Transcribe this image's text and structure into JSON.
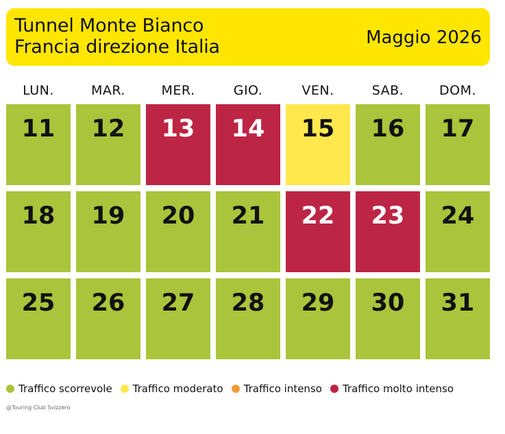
{
  "header": {
    "title_line1": "Tunnel Monte Bianco",
    "title_line2": "Francia direzione Italia",
    "month": "Maggio 2026"
  },
  "colors": {
    "header_bg": "#ffe600",
    "scorrevole": "#aac43b",
    "moderato": "#ffe84d",
    "intenso": "#f29a38",
    "molto_intenso": "#bd2545"
  },
  "weekdays": [
    "LUN.",
    "MAR.",
    "MER.",
    "GIO.",
    "VEN.",
    "SAB.",
    "DOM."
  ],
  "calendar": [
    [
      {
        "day": "11",
        "status": "scorrevole"
      },
      {
        "day": "12",
        "status": "scorrevole"
      },
      {
        "day": "13",
        "status": "molto_intenso"
      },
      {
        "day": "14",
        "status": "molto_intenso"
      },
      {
        "day": "15",
        "status": "moderato"
      },
      {
        "day": "16",
        "status": "scorrevole"
      },
      {
        "day": "17",
        "status": "scorrevole"
      }
    ],
    [
      {
        "day": "18",
        "status": "scorrevole"
      },
      {
        "day": "19",
        "status": "scorrevole"
      },
      {
        "day": "20",
        "status": "scorrevole"
      },
      {
        "day": "21",
        "status": "scorrevole"
      },
      {
        "day": "22",
        "status": "molto_intenso"
      },
      {
        "day": "23",
        "status": "molto_intenso"
      },
      {
        "day": "24",
        "status": "scorrevole"
      }
    ],
    [
      {
        "day": "25",
        "status": "scorrevole"
      },
      {
        "day": "26",
        "status": "scorrevole"
      },
      {
        "day": "27",
        "status": "scorrevole"
      },
      {
        "day": "28",
        "status": "scorrevole"
      },
      {
        "day": "29",
        "status": "scorrevole"
      },
      {
        "day": "30",
        "status": "scorrevole"
      },
      {
        "day": "31",
        "status": "scorrevole"
      }
    ]
  ],
  "legend": [
    {
      "key": "scorrevole",
      "label": "Traffico scorrevole"
    },
    {
      "key": "moderato",
      "label": "Traffico moderato"
    },
    {
      "key": "intenso",
      "label": "Traffico intenso"
    },
    {
      "key": "molto_intenso",
      "label": "Traffico molto intenso"
    }
  ],
  "credit": "@Touring Club Svizzero"
}
